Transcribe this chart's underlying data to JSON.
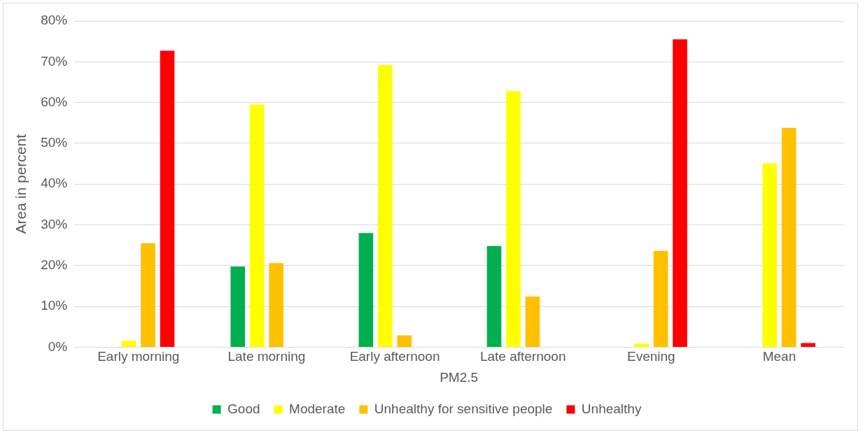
{
  "chart_data": {
    "type": "bar",
    "xlabel": "PM2.5",
    "ylabel": "Area in percent",
    "categories": [
      "Early morning",
      "Late morning",
      "Early afternoon",
      "Late afternoon",
      "Evening",
      "Mean"
    ],
    "series": [
      {
        "name": "Good",
        "color": "#00b050",
        "values": [
          0,
          19.8,
          28,
          24.8,
          0,
          0
        ]
      },
      {
        "name": "Moderate",
        "color": "#ffff00",
        "values": [
          1.6,
          59.5,
          69.2,
          62.8,
          0.9,
          45.1
        ]
      },
      {
        "name": "Unhealthy for sensitive people",
        "color": "#ffc000",
        "values": [
          25.5,
          20.6,
          2.9,
          12.4,
          23.6,
          53.8
        ]
      },
      {
        "name": "Unhealthy",
        "color": "#ff0000",
        "values": [
          72.7,
          0,
          0,
          0,
          75.5,
          1
        ]
      }
    ],
    "ylim": [
      0,
      80
    ],
    "yticks": [
      {
        "value": 0,
        "label": "0%"
      },
      {
        "value": 10,
        "label": "10%"
      },
      {
        "value": 20,
        "label": "20%"
      },
      {
        "value": 30,
        "label": "30%"
      },
      {
        "value": 40,
        "label": "40%"
      },
      {
        "value": 50,
        "label": "50%"
      },
      {
        "value": 60,
        "label": "60%"
      },
      {
        "value": 70,
        "label": "70%"
      },
      {
        "value": 80,
        "label": "80%"
      }
    ],
    "grid": "y",
    "legend": "bottom"
  }
}
